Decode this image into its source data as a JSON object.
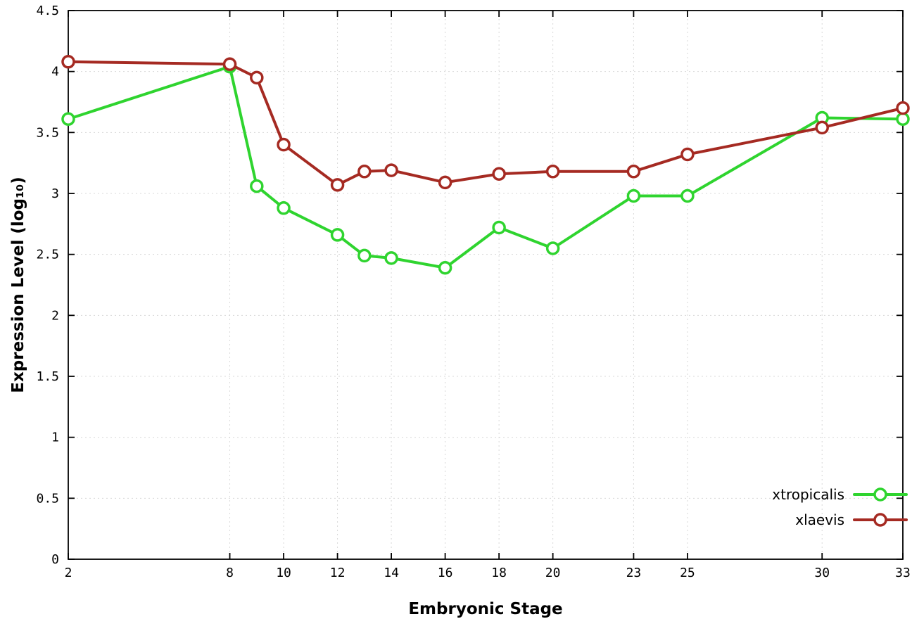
{
  "chart_data": {
    "type": "line",
    "xlabel": "Embryonic Stage",
    "ylabel": "Expression Level (log₁₀)",
    "xlim": [
      2,
      33
    ],
    "ylim": [
      0,
      4.5
    ],
    "grid": true,
    "legend_position": "bottom-right",
    "x": [
      2,
      8,
      9,
      10,
      12,
      13,
      14,
      16,
      18,
      20,
      23,
      25,
      30,
      33
    ],
    "series": [
      {
        "name": "xtropicalis",
        "color": "#2fd42f",
        "values": [
          3.61,
          4.04,
          3.06,
          2.88,
          2.66,
          2.49,
          2.47,
          2.39,
          2.72,
          2.55,
          2.98,
          2.98,
          3.62,
          3.61
        ]
      },
      {
        "name": "xlaevis",
        "color": "#a52a22",
        "values": [
          4.08,
          4.06,
          3.95,
          3.4,
          3.07,
          3.18,
          3.19,
          3.09,
          3.16,
          3.18,
          3.18,
          3.32,
          3.54,
          3.7
        ]
      }
    ],
    "xticks": [
      {
        "v": 2,
        "label": "2"
      },
      {
        "v": 8,
        "label": "8"
      },
      {
        "v": 10,
        "label": "10"
      },
      {
        "v": 12,
        "label": "12"
      },
      {
        "v": 14,
        "label": "14"
      },
      {
        "v": 16,
        "label": "16"
      },
      {
        "v": 18,
        "label": "18"
      },
      {
        "v": 20,
        "label": "20"
      },
      {
        "v": 23,
        "label": "23"
      },
      {
        "v": 25,
        "label": "25"
      },
      {
        "v": 30,
        "label": "30"
      },
      {
        "v": 33,
        "label": "33"
      }
    ],
    "yticks": [
      {
        "v": 0,
        "label": "0"
      },
      {
        "v": 0.5,
        "label": "0.5"
      },
      {
        "v": 1,
        "label": "1"
      },
      {
        "v": 1.5,
        "label": "1.5"
      },
      {
        "v": 2,
        "label": "2"
      },
      {
        "v": 2.5,
        "label": "2.5"
      },
      {
        "v": 3,
        "label": "3"
      },
      {
        "v": 3.5,
        "label": "3.5"
      },
      {
        "v": 4,
        "label": "4"
      },
      {
        "v": 4.5,
        "label": "4.5"
      }
    ],
    "colors": {
      "grid": "#d8d8d8",
      "axis": "#000000",
      "marker_fill": "#ffffff"
    }
  }
}
